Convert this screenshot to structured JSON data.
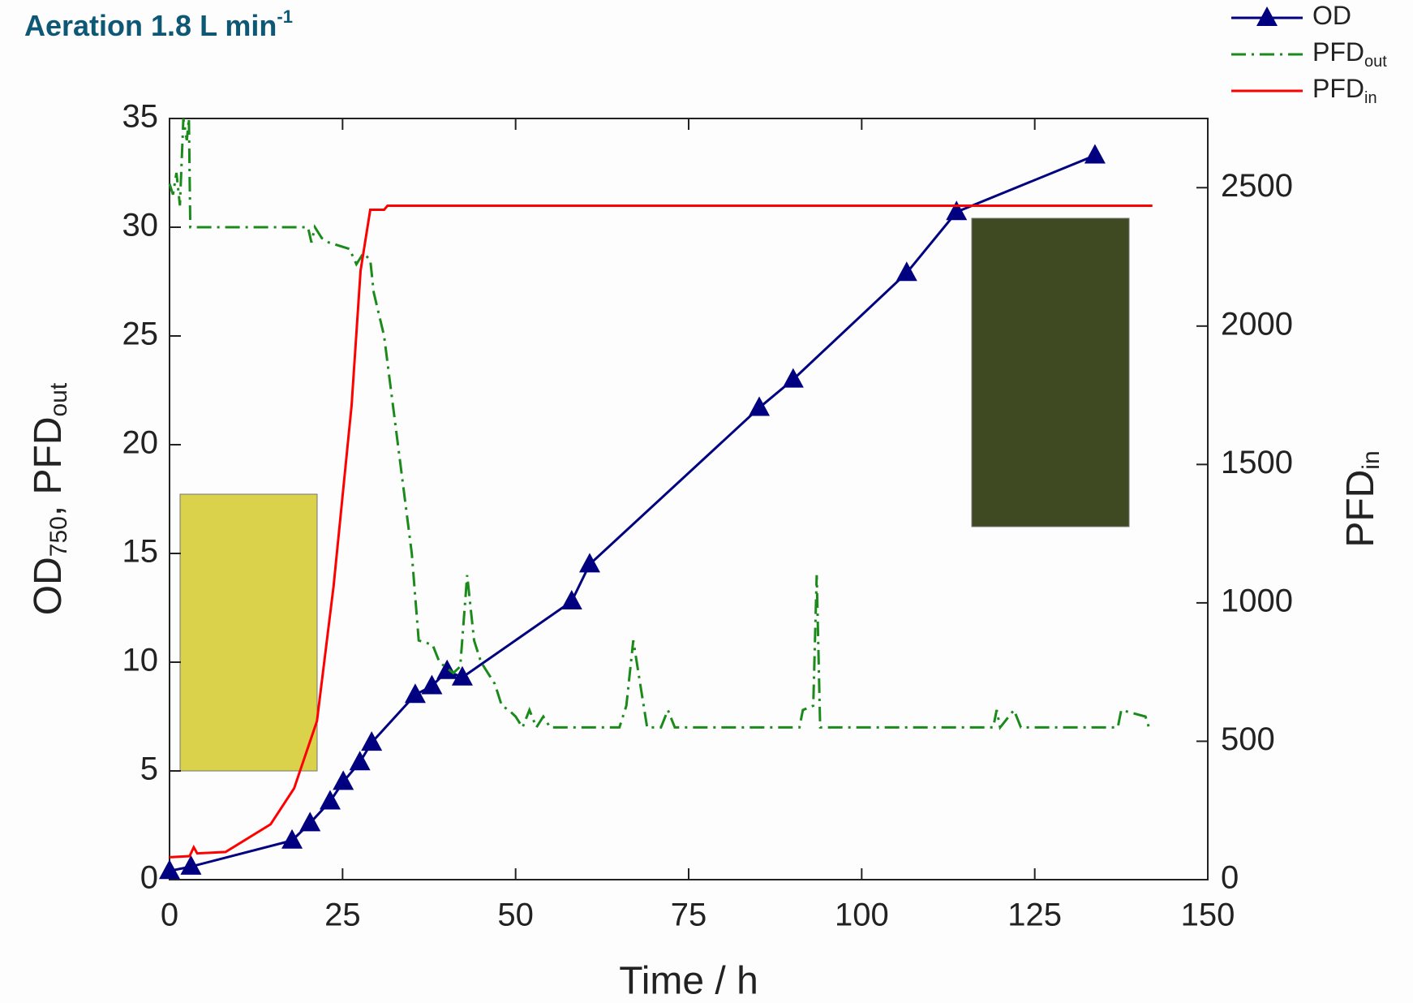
{
  "chart_data": {
    "type": "line",
    "title": "Aeration 1.8 L min",
    "title_superscript": "-1",
    "xlabel": "Time / h",
    "ylabel_parts": [
      {
        "text": "OD"
      },
      {
        "text": "750",
        "sub": true
      },
      {
        "text": ", PFD"
      },
      {
        "text": "out",
        "sub": true
      }
    ],
    "y2label_parts": [
      {
        "text": "PFD"
      },
      {
        "text": "in",
        "sub": true
      }
    ],
    "xlim": [
      0,
      150
    ],
    "xticks": [
      0,
      25,
      50,
      75,
      100,
      125,
      150
    ],
    "ylim": [
      0,
      35
    ],
    "yticks": [
      0,
      5,
      10,
      15,
      20,
      25,
      30,
      35
    ],
    "y2lim": [
      0,
      2750
    ],
    "y2ticks": [
      0,
      500,
      1000,
      1500,
      2000,
      2500
    ],
    "grid": false,
    "legend": "top-right",
    "series": [
      {
        "name": "OD",
        "color": "#000080",
        "line_style": "solid",
        "marker": "triangle",
        "x": [
          0,
          3.1,
          17.7,
          20.3,
          23.2,
          25.1,
          27.5,
          29.2,
          35.5,
          37.9,
          40.1,
          42.3,
          58.1,
          60.7,
          85.2,
          90.1,
          106.5,
          113.7,
          133.7
        ],
        "values": [
          0.4,
          0.6,
          1.8,
          2.6,
          3.6,
          4.5,
          5.4,
          6.3,
          8.5,
          8.9,
          9.6,
          9.3,
          12.8,
          14.5,
          21.7,
          23.0,
          27.9,
          30.7,
          33.3
        ]
      },
      {
        "name": "PFD",
        "name_sub": "out",
        "color": "#1a8a1a",
        "line_style": "dash-dot",
        "marker": "none",
        "x": [
          0,
          0.5,
          1,
          1.5,
          2,
          2.5,
          2.8,
          3,
          20,
          20.5,
          21,
          22,
          23,
          26,
          27,
          28,
          29,
          29.5,
          31,
          33,
          35,
          36,
          38,
          39,
          41,
          42,
          43,
          44,
          45,
          47,
          48,
          49,
          50,
          51,
          52,
          53,
          54,
          55,
          65,
          66,
          67,
          68,
          69,
          71,
          72,
          73,
          91,
          91.5,
          93,
          93.5,
          94,
          119,
          119.5,
          120,
          122,
          123,
          137,
          137.5,
          141,
          141.5
        ],
        "values": [
          32,
          31.5,
          32.5,
          31,
          35,
          34,
          35,
          30,
          30,
          29.3,
          30,
          29.5,
          29.3,
          29,
          28.3,
          28.8,
          28.5,
          27,
          25,
          20,
          15,
          11,
          10.8,
          10,
          9.5,
          9.8,
          14,
          11,
          10,
          9,
          8,
          7.8,
          7.5,
          7,
          7.8,
          7,
          7.5,
          7,
          7,
          8,
          11,
          9,
          7,
          7,
          7.8,
          7,
          7,
          7.8,
          8,
          14,
          7,
          7,
          7.8,
          7,
          7.8,
          7,
          7,
          7.8,
          7.5,
          7
        ]
      },
      {
        "name": "PFD",
        "name_sub": "in",
        "color": "#ff0000",
        "line_style": "solid",
        "marker": "none",
        "axis": "y2",
        "x": [
          0,
          2.9,
          3.5,
          4,
          8.1,
          14.6,
          18,
          21.3,
          23.7,
          26.3,
          27.6,
          29,
          29.5,
          31,
          31.5,
          142
        ],
        "values": [
          81,
          85,
          117,
          95,
          100,
          200,
          330,
          573,
          1060,
          1712,
          2200,
          2420,
          2420,
          2420,
          2435,
          2435
        ]
      }
    ]
  }
}
